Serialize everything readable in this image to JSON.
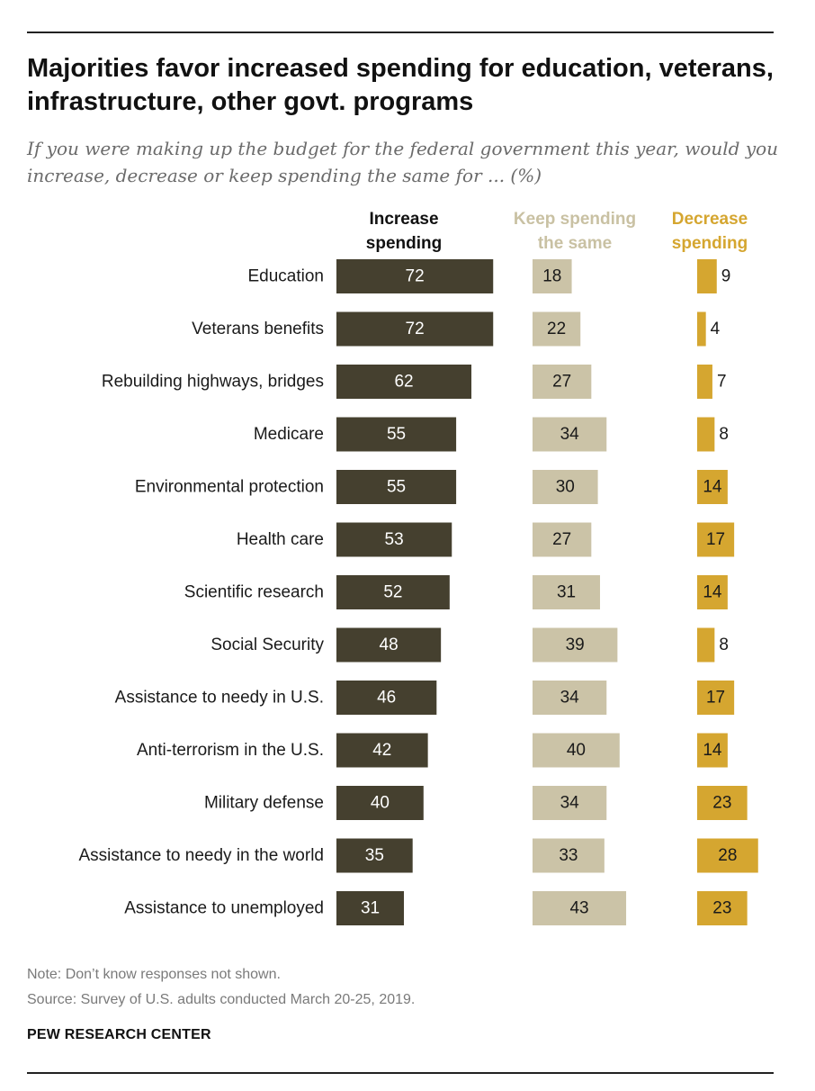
{
  "colors": {
    "increase": "#45402f",
    "keep": "#cbc3a7",
    "decrease": "#d5a630",
    "increase_header": "#111111",
    "keep_header": "#c9c1a3",
    "decrease_header": "#d5a630",
    "label_on_dark": "#ffffff",
    "label_on_light": "#1a1a1a"
  },
  "header": {
    "title": "Majorities favor increased spending for education, veterans, infrastructure, other govt. programs",
    "subtitle": "If you were making up the budget for the federal government this year, would you increase, decrease or keep spending the same for ... (%)"
  },
  "column_headers": {
    "increase_l1": "Increase",
    "increase_l2": "spending",
    "keep_l1": "Keep spending",
    "keep_l2": "the same",
    "decrease_l1": "Decrease",
    "decrease_l2": "spending"
  },
  "chart_data": {
    "type": "bar",
    "orientation": "horizontal",
    "categories": [
      "Education",
      "Veterans benefits",
      "Rebuilding highways, bridges",
      "Medicare",
      "Environmental protection",
      "Health care",
      "Scientific research",
      "Social Security",
      "Assistance to needy in U.S.",
      "Anti-terrorism in the U.S.",
      "Military defense",
      "Assistance to needy in the world",
      "Assistance to unemployed"
    ],
    "series": [
      {
        "name": "Increase spending",
        "values": [
          72,
          72,
          62,
          55,
          55,
          53,
          52,
          48,
          46,
          42,
          40,
          35,
          31
        ]
      },
      {
        "name": "Keep spending the same",
        "values": [
          18,
          22,
          27,
          34,
          30,
          27,
          31,
          39,
          34,
          40,
          34,
          33,
          43
        ]
      },
      {
        "name": "Decrease spending",
        "values": [
          9,
          4,
          7,
          8,
          14,
          17,
          14,
          8,
          17,
          14,
          23,
          28,
          23
        ]
      }
    ],
    "unit": "%",
    "data_labels": true,
    "legend": "column headers above bars"
  },
  "footer": {
    "note": "Note: Don’t know responses not shown.",
    "source": "Source: Survey of U.S. adults conducted March 20-25, 2019.",
    "brand": "PEW RESEARCH CENTER"
  }
}
